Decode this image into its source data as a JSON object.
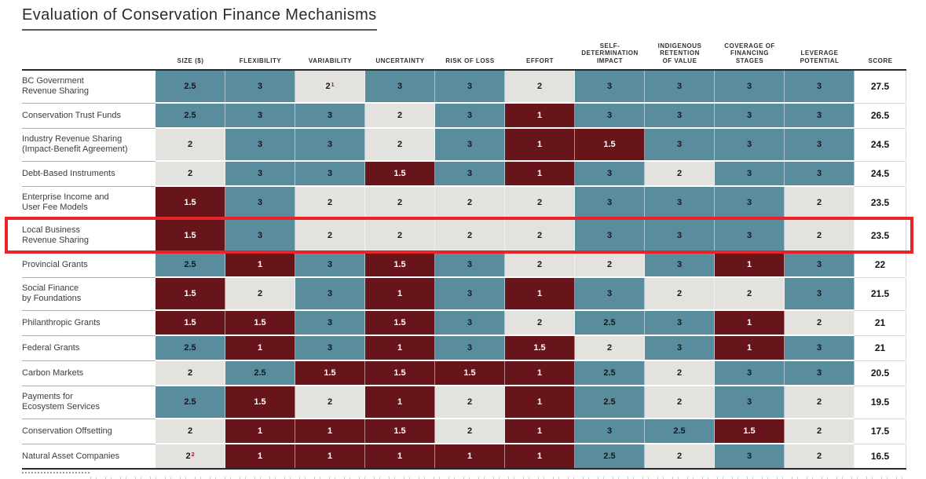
{
  "title": "Evaluation of Conservation Finance Mechanisms",
  "colors": {
    "high_teal": "#598d9e",
    "medium_gray": "#e4e2de",
    "low_maroon": "#67141a",
    "highlight_box_red": "#e8232a",
    "header_rule_dark": "#2a2a2a",
    "score_background": "#ffffff",
    "footnote_marker_red": "#8f1d1f"
  },
  "table": {
    "criteria_headers": [
      "SIZE ($)",
      "FLEXIBILITY",
      "VARIABILITY",
      "UNCERTAINTY",
      "RISK OF LOSS",
      "EFFORT",
      "SELF-\nDETERMINATION\nIMPACT",
      "INDIGENOUS\nRETENTION\nOF VALUE",
      "COVERAGE OF\nFINANCING\nSTAGES",
      "LEVERAGE\nPOTENTIAL",
      "SCORE"
    ],
    "rows": [
      {
        "mechanism": "BC Government\nRevenue Sharing",
        "highlighted": false,
        "values": [
          {
            "v": "2.5"
          },
          {
            "v": "3"
          },
          {
            "v": "2",
            "sup": "1"
          },
          {
            "v": "3"
          },
          {
            "v": "3"
          },
          {
            "v": "2"
          },
          {
            "v": "3"
          },
          {
            "v": "3"
          },
          {
            "v": "3"
          },
          {
            "v": "3"
          }
        ],
        "score": "27.5"
      },
      {
        "mechanism": "Conservation Trust Funds",
        "highlighted": false,
        "values": [
          {
            "v": "2.5"
          },
          {
            "v": "3"
          },
          {
            "v": "3"
          },
          {
            "v": "2"
          },
          {
            "v": "3"
          },
          {
            "v": "1"
          },
          {
            "v": "3"
          },
          {
            "v": "3"
          },
          {
            "v": "3"
          },
          {
            "v": "3"
          }
        ],
        "score": "26.5"
      },
      {
        "mechanism": "Industry Revenue Sharing\n(Impact-Benefit Agreement)",
        "highlighted": false,
        "values": [
          {
            "v": "2"
          },
          {
            "v": "3"
          },
          {
            "v": "3"
          },
          {
            "v": "2"
          },
          {
            "v": "3"
          },
          {
            "v": "1"
          },
          {
            "v": "1.5"
          },
          {
            "v": "3"
          },
          {
            "v": "3"
          },
          {
            "v": "3"
          }
        ],
        "score": "24.5"
      },
      {
        "mechanism": "Debt-Based Instruments",
        "highlighted": false,
        "values": [
          {
            "v": "2"
          },
          {
            "v": "3"
          },
          {
            "v": "3"
          },
          {
            "v": "1.5"
          },
          {
            "v": "3"
          },
          {
            "v": "1"
          },
          {
            "v": "3"
          },
          {
            "v": "2"
          },
          {
            "v": "3"
          },
          {
            "v": "3"
          }
        ],
        "score": "24.5"
      },
      {
        "mechanism": "Enterprise Income and\nUser Fee Models",
        "highlighted": false,
        "values": [
          {
            "v": "1.5"
          },
          {
            "v": "3"
          },
          {
            "v": "2"
          },
          {
            "v": "2"
          },
          {
            "v": "2"
          },
          {
            "v": "2"
          },
          {
            "v": "3"
          },
          {
            "v": "3"
          },
          {
            "v": "3"
          },
          {
            "v": "2"
          }
        ],
        "score": "23.5"
      },
      {
        "mechanism": "Local Business\nRevenue Sharing",
        "highlighted": true,
        "values": [
          {
            "v": "1.5"
          },
          {
            "v": "3"
          },
          {
            "v": "2"
          },
          {
            "v": "2"
          },
          {
            "v": "2"
          },
          {
            "v": "2"
          },
          {
            "v": "3"
          },
          {
            "v": "3"
          },
          {
            "v": "3"
          },
          {
            "v": "2"
          }
        ],
        "score": "23.5"
      },
      {
        "mechanism": "Provincial Grants",
        "highlighted": false,
        "values": [
          {
            "v": "2.5"
          },
          {
            "v": "1"
          },
          {
            "v": "3"
          },
          {
            "v": "1.5"
          },
          {
            "v": "3"
          },
          {
            "v": "2"
          },
          {
            "v": "2"
          },
          {
            "v": "3"
          },
          {
            "v": "1"
          },
          {
            "v": "3"
          }
        ],
        "score": "22"
      },
      {
        "mechanism": "Social Finance\nby Foundations",
        "highlighted": false,
        "values": [
          {
            "v": "1.5"
          },
          {
            "v": "2"
          },
          {
            "v": "3"
          },
          {
            "v": "1"
          },
          {
            "v": "3"
          },
          {
            "v": "1"
          },
          {
            "v": "3"
          },
          {
            "v": "2"
          },
          {
            "v": "2"
          },
          {
            "v": "3"
          }
        ],
        "score": "21.5"
      },
      {
        "mechanism": "Philanthropic Grants",
        "highlighted": false,
        "values": [
          {
            "v": "1.5"
          },
          {
            "v": "1.5"
          },
          {
            "v": "3"
          },
          {
            "v": "1.5"
          },
          {
            "v": "3"
          },
          {
            "v": "2"
          },
          {
            "v": "2.5"
          },
          {
            "v": "3"
          },
          {
            "v": "1"
          },
          {
            "v": "2"
          }
        ],
        "score": "21"
      },
      {
        "mechanism": "Federal Grants",
        "highlighted": false,
        "values": [
          {
            "v": "2.5"
          },
          {
            "v": "1"
          },
          {
            "v": "3"
          },
          {
            "v": "1"
          },
          {
            "v": "3"
          },
          {
            "v": "1.5"
          },
          {
            "v": "2"
          },
          {
            "v": "3"
          },
          {
            "v": "1"
          },
          {
            "v": "3"
          }
        ],
        "score": "21"
      },
      {
        "mechanism": "Carbon Markets",
        "highlighted": false,
        "values": [
          {
            "v": "2"
          },
          {
            "v": "2.5"
          },
          {
            "v": "1.5"
          },
          {
            "v": "1.5"
          },
          {
            "v": "1.5"
          },
          {
            "v": "1"
          },
          {
            "v": "2.5"
          },
          {
            "v": "2"
          },
          {
            "v": "3"
          },
          {
            "v": "3"
          }
        ],
        "score": "20.5"
      },
      {
        "mechanism": "Payments for\nEcosystem Services",
        "highlighted": false,
        "values": [
          {
            "v": "2.5"
          },
          {
            "v": "1.5"
          },
          {
            "v": "2"
          },
          {
            "v": "1"
          },
          {
            "v": "2"
          },
          {
            "v": "1"
          },
          {
            "v": "2.5"
          },
          {
            "v": "2"
          },
          {
            "v": "3"
          },
          {
            "v": "2"
          }
        ],
        "score": "19.5"
      },
      {
        "mechanism": "Conservation Offsetting",
        "highlighted": false,
        "values": [
          {
            "v": "2"
          },
          {
            "v": "1"
          },
          {
            "v": "1"
          },
          {
            "v": "1.5"
          },
          {
            "v": "2"
          },
          {
            "v": "1"
          },
          {
            "v": "3"
          },
          {
            "v": "2.5"
          },
          {
            "v": "1.5"
          },
          {
            "v": "2"
          }
        ],
        "score": "17.5"
      },
      {
        "mechanism": "Natural Asset Companies",
        "highlighted": false,
        "values": [
          {
            "v": "2",
            "sup": "2"
          },
          {
            "v": "1"
          },
          {
            "v": "1"
          },
          {
            "v": "1"
          },
          {
            "v": "1"
          },
          {
            "v": "1"
          },
          {
            "v": "2.5"
          },
          {
            "v": "2"
          },
          {
            "v": "3"
          },
          {
            "v": "2"
          }
        ],
        "score": "16.5"
      }
    ]
  },
  "chart_data": {
    "type": "heatmap",
    "title": "Evaluation of Conservation Finance Mechanisms",
    "columns": [
      "SIZE ($)",
      "FLEXIBILITY",
      "VARIABILITY",
      "UNCERTAINTY",
      "RISK OF LOSS",
      "EFFORT",
      "SELF-DETERMINATION IMPACT",
      "INDIGENOUS RETENTION OF VALUE",
      "COVERAGE OF FINANCING STAGES",
      "LEVERAGE POTENTIAL",
      "SCORE"
    ],
    "categories": [
      "BC Government Revenue Sharing",
      "Conservation Trust Funds",
      "Industry Revenue Sharing (Impact-Benefit Agreement)",
      "Debt-Based Instruments",
      "Enterprise Income and User Fee Models",
      "Local Business Revenue Sharing",
      "Provincial Grants",
      "Social Finance by Foundations",
      "Philanthropic Grants",
      "Federal Grants",
      "Carbon Markets",
      "Payments for Ecosystem Services",
      "Conservation Offsetting",
      "Natural Asset Companies"
    ],
    "series": [
      {
        "name": "BC Government Revenue Sharing",
        "values": [
          2.5,
          3,
          2,
          3,
          3,
          2,
          3,
          3,
          3,
          3
        ],
        "score": 27.5,
        "footnote_marker": "1 on VARIABILITY value"
      },
      {
        "name": "Conservation Trust Funds",
        "values": [
          2.5,
          3,
          3,
          2,
          3,
          1,
          3,
          3,
          3,
          3
        ],
        "score": 26.5
      },
      {
        "name": "Industry Revenue Sharing (Impact-Benefit Agreement)",
        "values": [
          2,
          3,
          3,
          2,
          3,
          1,
          1.5,
          3,
          3,
          3
        ],
        "score": 24.5
      },
      {
        "name": "Debt-Based Instruments",
        "values": [
          2,
          3,
          3,
          1.5,
          3,
          1,
          3,
          2,
          3,
          3
        ],
        "score": 24.5
      },
      {
        "name": "Enterprise Income and User Fee Models",
        "values": [
          1.5,
          3,
          2,
          2,
          2,
          2,
          3,
          3,
          3,
          2
        ],
        "score": 23.5
      },
      {
        "name": "Local Business Revenue Sharing",
        "values": [
          1.5,
          3,
          2,
          2,
          2,
          2,
          3,
          3,
          3,
          2
        ],
        "score": 23.5,
        "highlighted": true
      },
      {
        "name": "Provincial Grants",
        "values": [
          2.5,
          1,
          3,
          1.5,
          3,
          2,
          2,
          3,
          1,
          3
        ],
        "score": 22
      },
      {
        "name": "Social Finance by Foundations",
        "values": [
          1.5,
          2,
          3,
          1,
          3,
          1,
          3,
          2,
          2,
          3
        ],
        "score": 21.5
      },
      {
        "name": "Philanthropic Grants",
        "values": [
          1.5,
          1.5,
          3,
          1.5,
          3,
          2,
          2.5,
          3,
          1,
          2
        ],
        "score": 21
      },
      {
        "name": "Federal Grants",
        "values": [
          2.5,
          1,
          3,
          1,
          3,
          1.5,
          2,
          3,
          1,
          3
        ],
        "score": 21
      },
      {
        "name": "Carbon Markets",
        "values": [
          2,
          2.5,
          1.5,
          1.5,
          1.5,
          1,
          2.5,
          2,
          3,
          3
        ],
        "score": 20.5
      },
      {
        "name": "Payments for Ecosystem Services",
        "values": [
          2.5,
          1.5,
          2,
          1,
          2,
          1,
          2.5,
          2,
          3,
          2
        ],
        "score": 19.5
      },
      {
        "name": "Conservation Offsetting",
        "values": [
          2,
          1,
          1,
          1.5,
          2,
          1,
          3,
          2.5,
          1.5,
          2
        ],
        "score": 17.5
      },
      {
        "name": "Natural Asset Companies",
        "values": [
          2,
          1,
          1,
          1,
          1,
          1,
          2.5,
          2,
          3,
          2
        ],
        "score": 16.5,
        "footnote_marker": "2 on SIZE value"
      }
    ],
    "color_rule": "value >= 2.5 teal #598d9e; value == 2 gray #e4e2de; value <= 1.5 maroon #67141a",
    "value_range": [
      1,
      3
    ],
    "legend_position": "none",
    "grid": false
  }
}
